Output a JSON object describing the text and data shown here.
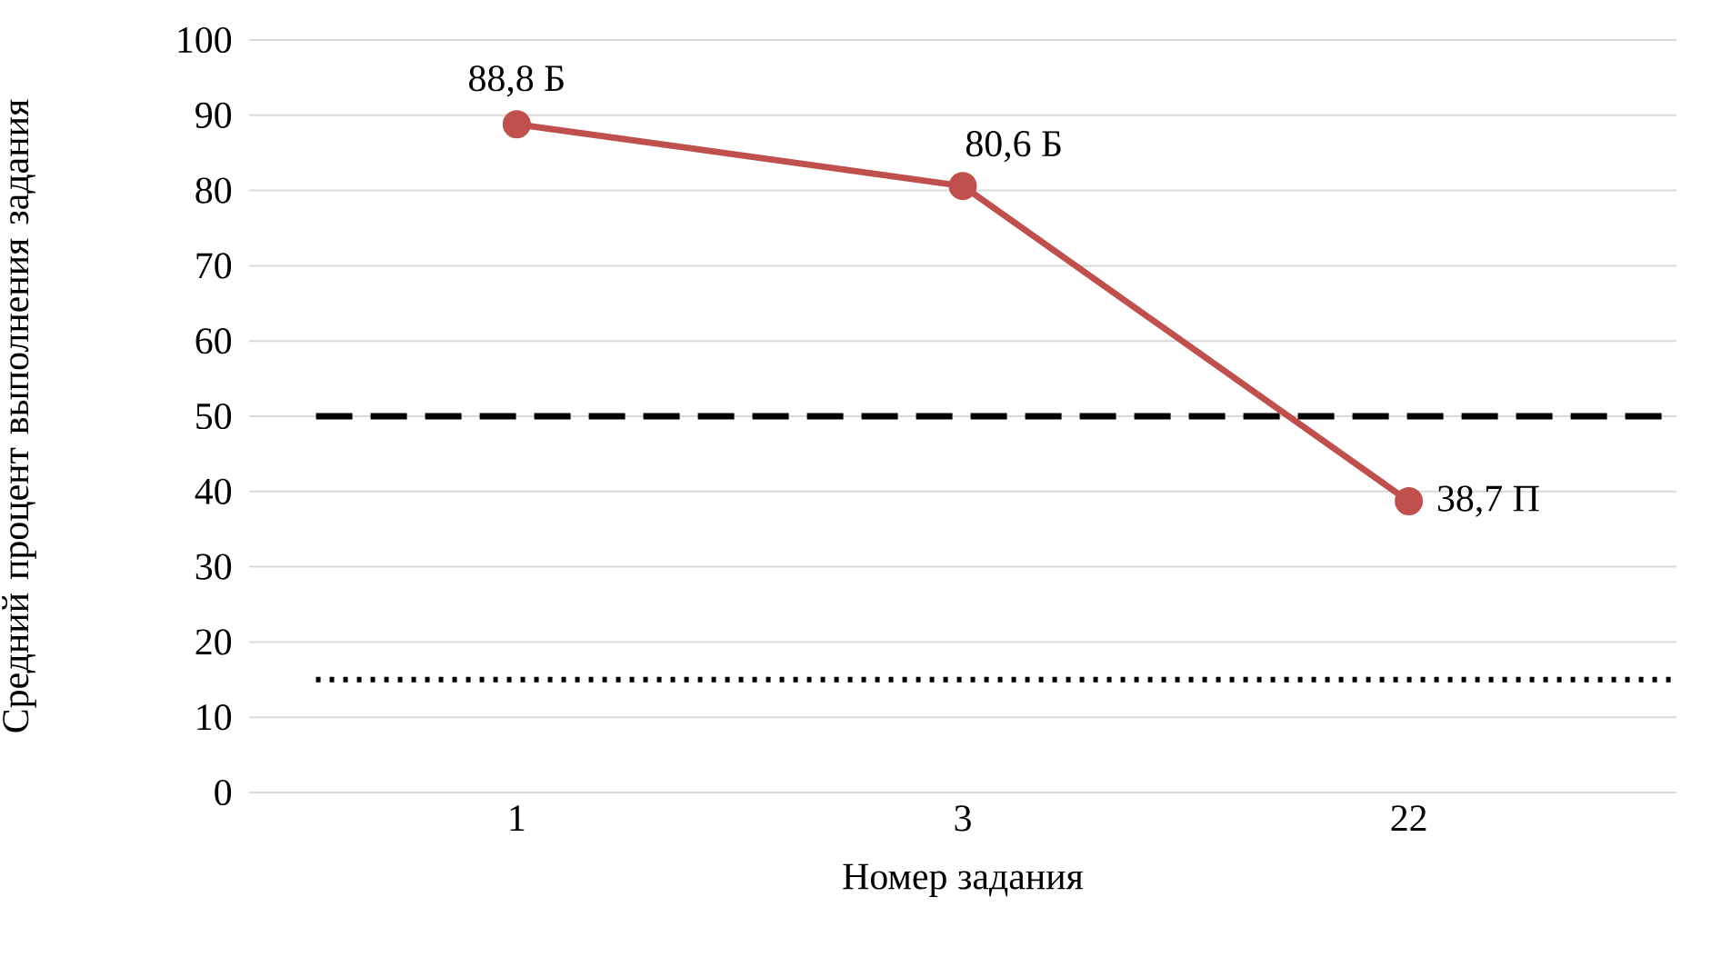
{
  "chart_data": {
    "type": "line",
    "xlabel": "Номер задания",
    "ylabel": "Средний процент выполнения задания",
    "categories": [
      "1",
      "3",
      "22"
    ],
    "values": [
      88.8,
      80.6,
      38.7
    ],
    "value_labels": [
      "88,8 Б",
      "80,6 Б",
      "38,7 П"
    ],
    "color": "#c0504d",
    "marker": "circle",
    "line_style": "solid",
    "ylim": [
      0,
      100
    ],
    "yticks": [
      0,
      10,
      20,
      30,
      40,
      50,
      60,
      70,
      80,
      90,
      100
    ],
    "grid": "y",
    "ref_lines": [
      {
        "axis": "y",
        "value": 50,
        "color": "#000000",
        "line_style": "dashed"
      },
      {
        "axis": "y",
        "value": 15,
        "color": "#000000",
        "line_style": "dotted"
      }
    ]
  }
}
